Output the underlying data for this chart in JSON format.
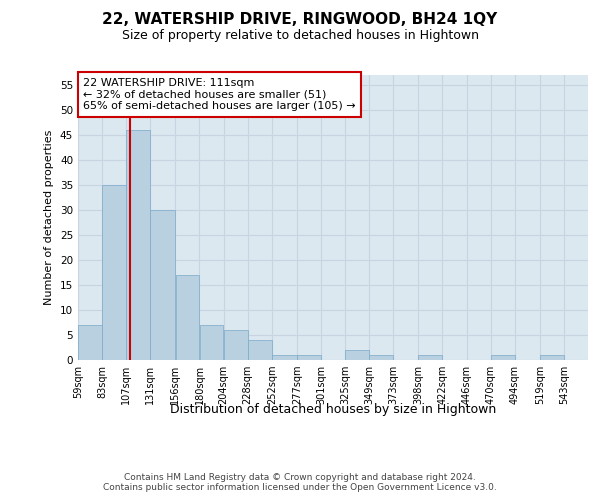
{
  "title1": "22, WATERSHIP DRIVE, RINGWOOD, BH24 1QY",
  "title2": "Size of property relative to detached houses in Hightown",
  "xlabel": "Distribution of detached houses by size in Hightown",
  "ylabel": "Number of detached properties",
  "footer1": "Contains HM Land Registry data © Crown copyright and database right 2024.",
  "footer2": "Contains public sector information licensed under the Open Government Licence v3.0.",
  "annotation_title": "22 WATERSHIP DRIVE: 111sqm",
  "annotation_line2": "← 32% of detached houses are smaller (51)",
  "annotation_line3": "65% of semi-detached houses are larger (105) →",
  "property_sqm": 111,
  "bar_left_edges": [
    59,
    83,
    107,
    131,
    156,
    180,
    204,
    228,
    252,
    277,
    301,
    325,
    349,
    373,
    398,
    422,
    446,
    470,
    494,
    519
  ],
  "bar_widths": [
    24,
    24,
    24,
    25,
    24,
    24,
    24,
    24,
    25,
    24,
    24,
    24,
    24,
    25,
    24,
    24,
    24,
    24,
    25,
    24
  ],
  "bar_heights": [
    7,
    35,
    46,
    30,
    17,
    7,
    6,
    4,
    1,
    1,
    0,
    2,
    1,
    0,
    1,
    0,
    0,
    1,
    0,
    1
  ],
  "tick_labels": [
    "59sqm",
    "83sqm",
    "107sqm",
    "131sqm",
    "156sqm",
    "180sqm",
    "204sqm",
    "228sqm",
    "252sqm",
    "277sqm",
    "301sqm",
    "325sqm",
    "349sqm",
    "373sqm",
    "398sqm",
    "422sqm",
    "446sqm",
    "470sqm",
    "494sqm",
    "519sqm",
    "543sqm"
  ],
  "bar_color": "#b8d0e0",
  "bar_edge_color": "#7aaac8",
  "highlight_line_color": "#cc0000",
  "grid_color": "#c8d4e0",
  "background_color": "#dce8f0",
  "ylim": [
    0,
    57
  ],
  "yticks": [
    0,
    5,
    10,
    15,
    20,
    25,
    30,
    35,
    40,
    45,
    50,
    55
  ],
  "annotation_box_color": "#ffffff",
  "annotation_box_edge": "#cc0000",
  "title1_fontsize": 11,
  "title2_fontsize": 9,
  "ylabel_fontsize": 8,
  "xlabel_fontsize": 9,
  "tick_fontsize": 7,
  "footer_fontsize": 6.5,
  "annotation_fontsize": 8
}
